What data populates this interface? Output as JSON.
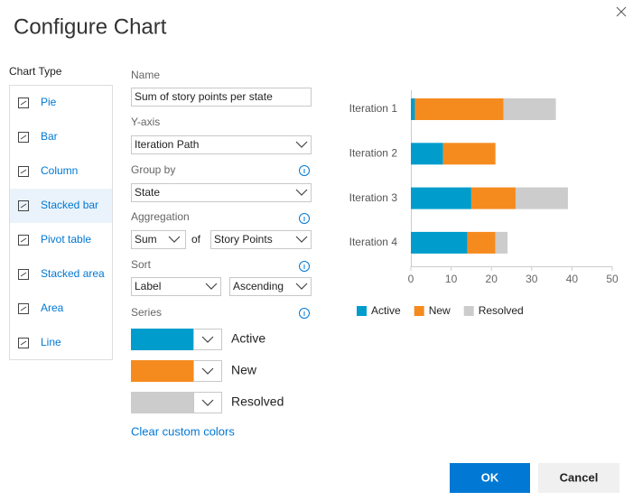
{
  "dialog": {
    "title": "Configure Chart"
  },
  "chart_types": {
    "label": "Chart Type",
    "items": [
      "Pie",
      "Bar",
      "Column",
      "Stacked bar",
      "Pivot table",
      "Stacked area",
      "Area",
      "Line"
    ],
    "selected": 3
  },
  "form": {
    "name_label": "Name",
    "name_value": "Sum of story points per state",
    "yaxis_label": "Y-axis",
    "yaxis_value": "Iteration Path",
    "group_label": "Group by",
    "group_value": "State",
    "aggregation_label": "Aggregation",
    "aggregation_func": "Sum",
    "of": "of",
    "aggregation_field": "Story Points",
    "sort_label": "Sort",
    "sort_field": "Label",
    "sort_order": "Ascending",
    "series_label": "Series",
    "clear": "Clear custom colors"
  },
  "chart_data": {
    "type": "stacked-bar",
    "orientation": "horizontal",
    "categories": [
      "Iteration 1",
      "Iteration 2",
      "Iteration 3",
      "Iteration 4"
    ],
    "series": [
      {
        "name": "Active",
        "color": "#009ccc",
        "values": [
          1,
          8,
          15,
          14
        ]
      },
      {
        "name": "New",
        "color": "#f58b1f",
        "values": [
          22,
          13,
          11,
          7
        ]
      },
      {
        "name": "Resolved",
        "color": "#cccccc",
        "values": [
          13,
          0,
          13,
          3
        ]
      }
    ],
    "xlim": [
      0,
      50
    ],
    "xticks": [
      0,
      10,
      20,
      30,
      40,
      50
    ],
    "legend": "bottom"
  },
  "buttons": {
    "ok": "OK",
    "cancel": "Cancel"
  }
}
